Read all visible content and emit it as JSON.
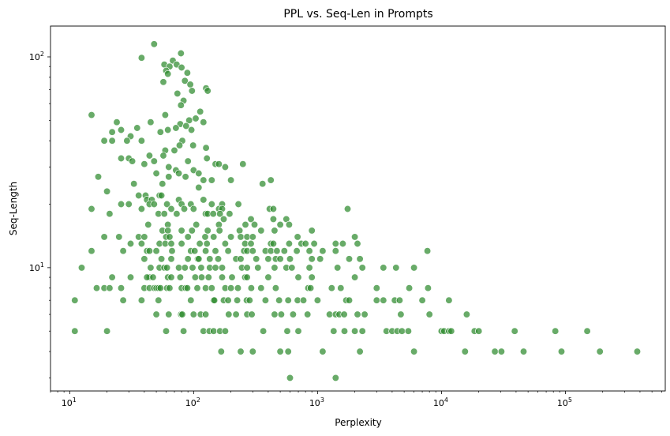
{
  "chart_data": {
    "type": "scatter",
    "title": "PPL vs. Seq-Len in Prompts",
    "xlabel": "Perplexity",
    "ylabel": "Seq-Length",
    "xscale": "log",
    "yscale": "log",
    "xlim": [
      7,
      640000
    ],
    "ylim": [
      2.6,
      140
    ],
    "grid": false,
    "color": "#2e8b2e",
    "x_ticks": [
      {
        "value": 10,
        "base": "10",
        "exp": "1"
      },
      {
        "value": 100,
        "base": "10",
        "exp": "2"
      },
      {
        "value": 1000,
        "base": "10",
        "exp": "3"
      },
      {
        "value": 10000,
        "base": "10",
        "exp": "4"
      },
      {
        "value": 100000,
        "base": "10",
        "exp": "5"
      }
    ],
    "y_ticks": [
      {
        "value": 10,
        "base": "10",
        "exp": "1"
      },
      {
        "value": 100,
        "base": "10",
        "exp": "2"
      }
    ],
    "points": [
      [
        48,
        115
      ],
      [
        79,
        104
      ],
      [
        38,
        99
      ],
      [
        68,
        96
      ],
      [
        58,
        92
      ],
      [
        64,
        90
      ],
      [
        73,
        92
      ],
      [
        80,
        89
      ],
      [
        60,
        86
      ],
      [
        62,
        83
      ],
      [
        89,
        84
      ],
      [
        85,
        77
      ],
      [
        57,
        76
      ],
      [
        94,
        74
      ],
      [
        97,
        69
      ],
      [
        126,
        71
      ],
      [
        130,
        69
      ],
      [
        74,
        67
      ],
      [
        83,
        62
      ],
      [
        79,
        59
      ],
      [
        113,
        55
      ],
      [
        104,
        51
      ],
      [
        92,
        50
      ],
      [
        59,
        53
      ],
      [
        15,
        53
      ],
      [
        24,
        49
      ],
      [
        35,
        46
      ],
      [
        45,
        49
      ],
      [
        78,
        48
      ],
      [
        87,
        47
      ],
      [
        96,
        45
      ],
      [
        62,
        45
      ],
      [
        72,
        46
      ],
      [
        54,
        44
      ],
      [
        26,
        45
      ],
      [
        120,
        49
      ],
      [
        22,
        44
      ],
      [
        31,
        42
      ],
      [
        38,
        40
      ],
      [
        19,
        40
      ],
      [
        22,
        40
      ],
      [
        29,
        40
      ],
      [
        81,
        40
      ],
      [
        126,
        37
      ],
      [
        99,
        38
      ],
      [
        77,
        38
      ],
      [
        59,
        36
      ],
      [
        70,
        36
      ],
      [
        44,
        34
      ],
      [
        57,
        34
      ],
      [
        128,
        33
      ],
      [
        30,
        33
      ],
      [
        26,
        33
      ],
      [
        32,
        32
      ],
      [
        48,
        32
      ],
      [
        90,
        32
      ],
      [
        40,
        31
      ],
      [
        63,
        30
      ],
      [
        72,
        29
      ],
      [
        50,
        28
      ],
      [
        76,
        28
      ],
      [
        100,
        29
      ],
      [
        110,
        28
      ],
      [
        150,
        31
      ],
      [
        160,
        31
      ],
      [
        180,
        30
      ],
      [
        250,
        31
      ],
      [
        17,
        27
      ],
      [
        63,
        27
      ],
      [
        86,
        27
      ],
      [
        120,
        26
      ],
      [
        140,
        26
      ],
      [
        200,
        26
      ],
      [
        420,
        26
      ],
      [
        33,
        25
      ],
      [
        56,
        25
      ],
      [
        110,
        24
      ],
      [
        360,
        25
      ],
      [
        20,
        23
      ],
      [
        36,
        22
      ],
      [
        41,
        22
      ],
      [
        53,
        22
      ],
      [
        55,
        22
      ],
      [
        42,
        21
      ],
      [
        46,
        21
      ],
      [
        76,
        21
      ],
      [
        120,
        21
      ],
      [
        26,
        20
      ],
      [
        30,
        20
      ],
      [
        44,
        20
      ],
      [
        48,
        20
      ],
      [
        61,
        20
      ],
      [
        80,
        20
      ],
      [
        95,
        20
      ],
      [
        140,
        20
      ],
      [
        170,
        20
      ],
      [
        230,
        20
      ],
      [
        15,
        19
      ],
      [
        38,
        19
      ],
      [
        66,
        19
      ],
      [
        84,
        19
      ],
      [
        100,
        19
      ],
      [
        160,
        19
      ],
      [
        170,
        19
      ],
      [
        410,
        19
      ],
      [
        440,
        19
      ],
      [
        1750,
        19
      ],
      [
        21,
        18
      ],
      [
        52,
        18
      ],
      [
        58,
        18
      ],
      [
        73,
        18
      ],
      [
        125,
        18
      ],
      [
        130,
        18
      ],
      [
        144,
        18
      ],
      [
        163,
        18
      ],
      [
        195,
        18
      ],
      [
        175,
        17
      ],
      [
        290,
        17
      ],
      [
        440,
        17
      ],
      [
        560,
        17
      ],
      [
        43,
        16
      ],
      [
        62,
        16
      ],
      [
        105,
        16
      ],
      [
        160,
        16
      ],
      [
        262,
        16
      ],
      [
        310,
        16
      ],
      [
        500,
        16
      ],
      [
        590,
        16
      ],
      [
        56,
        15
      ],
      [
        62,
        15
      ],
      [
        80,
        15
      ],
      [
        97,
        15
      ],
      [
        130,
        15
      ],
      [
        162,
        15
      ],
      [
        235,
        15
      ],
      [
        350,
        15
      ],
      [
        450,
        15
      ],
      [
        900,
        15
      ],
      [
        36,
        14
      ],
      [
        40,
        14
      ],
      [
        60,
        14
      ],
      [
        64,
        14
      ],
      [
        90,
        14
      ],
      [
        124,
        14
      ],
      [
        145,
        14
      ],
      [
        200,
        14
      ],
      [
        240,
        14
      ],
      [
        270,
        14
      ],
      [
        300,
        14
      ],
      [
        690,
        14
      ],
      [
        2000,
        14
      ],
      [
        19,
        14
      ],
      [
        25,
        14
      ],
      [
        53,
        13
      ],
      [
        59,
        13
      ],
      [
        66,
        13
      ],
      [
        80,
        13
      ],
      [
        112,
        13
      ],
      [
        128,
        13
      ],
      [
        180,
        13
      ],
      [
        260,
        13
      ],
      [
        290,
        13
      ],
      [
        420,
        13
      ],
      [
        440,
        13
      ],
      [
        590,
        13
      ],
      [
        740,
        13
      ],
      [
        800,
        13
      ],
      [
        940,
        13
      ],
      [
        1400,
        13
      ],
      [
        1600,
        13
      ],
      [
        2100,
        13
      ],
      [
        31,
        13
      ],
      [
        38,
        13
      ],
      [
        15,
        12
      ],
      [
        27,
        12
      ],
      [
        42,
        12
      ],
      [
        44,
        12
      ],
      [
        50,
        12
      ],
      [
        67,
        12
      ],
      [
        95,
        12
      ],
      [
        102,
        12
      ],
      [
        125,
        12
      ],
      [
        150,
        12
      ],
      [
        190,
        12
      ],
      [
        255,
        12
      ],
      [
        270,
        12
      ],
      [
        300,
        12
      ],
      [
        380,
        12
      ],
      [
        420,
        12
      ],
      [
        470,
        12
      ],
      [
        540,
        12
      ],
      [
        680,
        12
      ],
      [
        860,
        12
      ],
      [
        1100,
        12
      ],
      [
        1400,
        12
      ],
      [
        7700,
        12
      ],
      [
        40,
        11
      ],
      [
        55,
        11
      ],
      [
        66,
        11
      ],
      [
        90,
        11
      ],
      [
        108,
        11
      ],
      [
        110,
        11
      ],
      [
        135,
        11
      ],
      [
        158,
        11
      ],
      [
        220,
        11
      ],
      [
        240,
        11
      ],
      [
        320,
        11
      ],
      [
        400,
        11
      ],
      [
        460,
        11
      ],
      [
        500,
        11
      ],
      [
        600,
        11
      ],
      [
        900,
        11
      ],
      [
        1050,
        11
      ],
      [
        1800,
        11
      ],
      [
        2200,
        11
      ],
      [
        12.5,
        10
      ],
      [
        45,
        10
      ],
      [
        53,
        10
      ],
      [
        58,
        10
      ],
      [
        61,
        10
      ],
      [
        76,
        10
      ],
      [
        85,
        10
      ],
      [
        98,
        10
      ],
      [
        115,
        10
      ],
      [
        135,
        10
      ],
      [
        150,
        10
      ],
      [
        170,
        10
      ],
      [
        245,
        10
      ],
      [
        270,
        10
      ],
      [
        330,
        10
      ],
      [
        450,
        10
      ],
      [
        560,
        10
      ],
      [
        620,
        10
      ],
      [
        860,
        10
      ],
      [
        1450,
        10
      ],
      [
        2300,
        10
      ],
      [
        3400,
        10
      ],
      [
        4300,
        10
      ],
      [
        6000,
        10
      ],
      [
        44,
        9
      ],
      [
        31,
        9
      ],
      [
        22,
        9
      ],
      [
        42,
        9
      ],
      [
        47,
        9
      ],
      [
        62,
        9
      ],
      [
        66,
        9
      ],
      [
        78,
        9
      ],
      [
        103,
        9
      ],
      [
        116,
        9
      ],
      [
        132,
        9
      ],
      [
        170,
        9
      ],
      [
        204,
        9
      ],
      [
        260,
        9
      ],
      [
        270,
        9
      ],
      [
        400,
        9
      ],
      [
        700,
        9
      ],
      [
        900,
        9
      ],
      [
        2000,
        9
      ],
      [
        16.5,
        8
      ],
      [
        19,
        8
      ],
      [
        21,
        8
      ],
      [
        26,
        8
      ],
      [
        40,
        8
      ],
      [
        44,
        8
      ],
      [
        48,
        8
      ],
      [
        50,
        8
      ],
      [
        52,
        8
      ],
      [
        54,
        8
      ],
      [
        61,
        8
      ],
      [
        64,
        8
      ],
      [
        80,
        8
      ],
      [
        86,
        8
      ],
      [
        89,
        8
      ],
      [
        107,
        8
      ],
      [
        125,
        8
      ],
      [
        140,
        8
      ],
      [
        180,
        8
      ],
      [
        200,
        8
      ],
      [
        228,
        8
      ],
      [
        292,
        8
      ],
      [
        350,
        8
      ],
      [
        460,
        8
      ],
      [
        840,
        8
      ],
      [
        880,
        8
      ],
      [
        1300,
        8
      ],
      [
        1540,
        8
      ],
      [
        3000,
        8
      ],
      [
        5500,
        8
      ],
      [
        7800,
        8
      ],
      [
        11,
        7
      ],
      [
        27,
        7
      ],
      [
        38,
        7
      ],
      [
        52,
        7
      ],
      [
        95,
        7
      ],
      [
        145,
        7
      ],
      [
        147,
        7
      ],
      [
        175,
        7
      ],
      [
        190,
        7
      ],
      [
        225,
        7
      ],
      [
        268,
        7
      ],
      [
        283,
        7
      ],
      [
        380,
        7
      ],
      [
        490,
        7
      ],
      [
        580,
        7
      ],
      [
        690,
        7
      ],
      [
        770,
        7
      ],
      [
        1000,
        7
      ],
      [
        1700,
        7
      ],
      [
        1800,
        7
      ],
      [
        3000,
        7
      ],
      [
        3400,
        7
      ],
      [
        4200,
        7
      ],
      [
        4600,
        7
      ],
      [
        7000,
        7
      ],
      [
        11500,
        7
      ],
      [
        50,
        6
      ],
      [
        63,
        6
      ],
      [
        79,
        6
      ],
      [
        81,
        6
      ],
      [
        100,
        6
      ],
      [
        114,
        6
      ],
      [
        125,
        6
      ],
      [
        192,
        6
      ],
      [
        220,
        6
      ],
      [
        270,
        6
      ],
      [
        295,
        6
      ],
      [
        450,
        6
      ],
      [
        510,
        6
      ],
      [
        635,
        6
      ],
      [
        830,
        6
      ],
      [
        1250,
        6
      ],
      [
        1400,
        6
      ],
      [
        1500,
        6
      ],
      [
        1640,
        6
      ],
      [
        2100,
        6
      ],
      [
        2400,
        6
      ],
      [
        4700,
        6
      ],
      [
        8000,
        6
      ],
      [
        16000,
        6
      ],
      [
        11,
        5
      ],
      [
        20,
        5
      ],
      [
        60,
        5
      ],
      [
        83,
        5
      ],
      [
        120,
        5
      ],
      [
        134,
        5
      ],
      [
        145,
        5
      ],
      [
        163,
        5
      ],
      [
        180,
        5
      ],
      [
        365,
        5
      ],
      [
        570,
        5
      ],
      [
        700,
        5
      ],
      [
        1350,
        5
      ],
      [
        1650,
        5
      ],
      [
        2000,
        5
      ],
      [
        2300,
        5
      ],
      [
        3600,
        5
      ],
      [
        4000,
        5
      ],
      [
        4400,
        5
      ],
      [
        4800,
        5
      ],
      [
        5400,
        5
      ],
      [
        10000,
        5
      ],
      [
        10500,
        5
      ],
      [
        11500,
        5
      ],
      [
        12000,
        5
      ],
      [
        18500,
        5
      ],
      [
        20000,
        5
      ],
      [
        39000,
        5
      ],
      [
        83000,
        5
      ],
      [
        150000,
        5
      ],
      [
        167,
        4
      ],
      [
        240,
        4
      ],
      [
        300,
        4
      ],
      [
        500,
        4
      ],
      [
        580,
        4
      ],
      [
        1100,
        4
      ],
      [
        2200,
        4
      ],
      [
        6000,
        4
      ],
      [
        15500,
        4
      ],
      [
        27000,
        4
      ],
      [
        30500,
        4
      ],
      [
        46000,
        4
      ],
      [
        93000,
        4
      ],
      [
        190000,
        4
      ],
      [
        380000,
        4
      ],
      [
        600,
        3
      ],
      [
        1400,
        3
      ]
    ]
  }
}
